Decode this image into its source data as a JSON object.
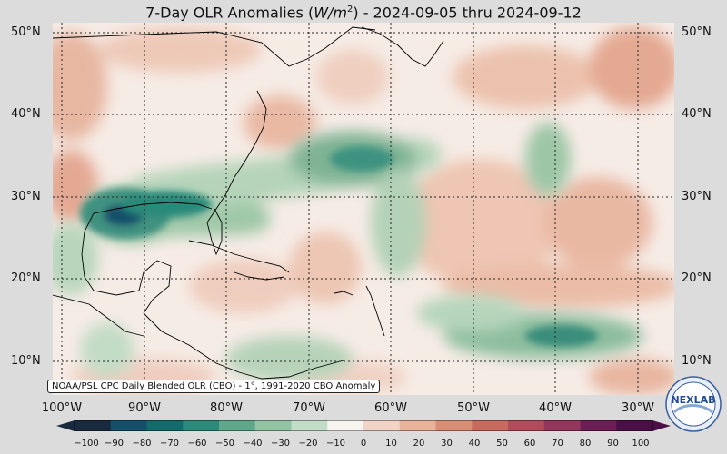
{
  "title": {
    "prefix": "7-Day OLR Anomalies (",
    "unit_italic": "W/m",
    "unit_sup": "2",
    "suffix": ") - 2024-09-05 thru 2024-09-12"
  },
  "lat_labels": [
    "50°N",
    "40°N",
    "30°N",
    "20°N",
    "10°N"
  ],
  "lon_labels": [
    "100°W",
    "90°W",
    "80°W",
    "70°W",
    "60°W",
    "50°W",
    "40°W",
    "30°W"
  ],
  "credit": "NOAA/PSL CPC Daily Blended OLR (CBO) - 1°, 1991-2020 CBO Anomaly",
  "colorbar": {
    "ticks": [
      "−100",
      "−90",
      "−80",
      "−70",
      "−60",
      "−50",
      "−40",
      "−30",
      "−20",
      "−10",
      "0",
      "10",
      "20",
      "30",
      "40",
      "50",
      "60",
      "70",
      "80",
      "90",
      "100"
    ],
    "colors": [
      "#1a2a3e",
      "#14506a",
      "#136b6b",
      "#2b8a7a",
      "#5fa88c",
      "#93c4a4",
      "#c2dcc6",
      "#f7f3ef",
      "#f1d4c6",
      "#e8b29b",
      "#d98e77",
      "#c86a60",
      "#b24c5c",
      "#93355d",
      "#6d1f55",
      "#4a0f47"
    ]
  },
  "logo": {
    "text": "NEXLAB"
  },
  "colors": {
    "positive": "#e8b29b",
    "negative": "#2b8a7a",
    "neutral": "#f6ece6",
    "background": "#dcdcdc"
  }
}
